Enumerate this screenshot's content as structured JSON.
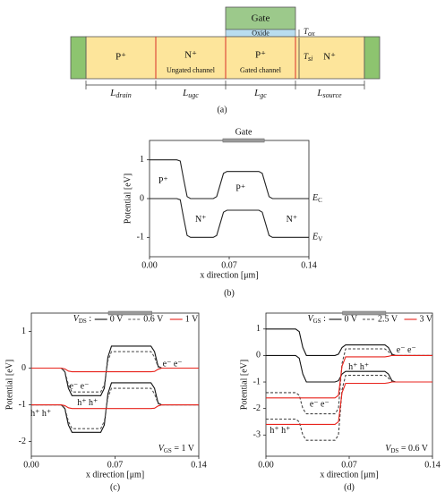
{
  "diagram": {
    "gate": "Gate",
    "oxide": "Oxide",
    "regions": [
      {
        "label": "P⁺"
      },
      {
        "label": "N⁺",
        "sublabel": "Ungated channel"
      },
      {
        "label": "P⁺",
        "sublabel": "Gated channel"
      },
      {
        "label": "N⁺"
      }
    ],
    "dimensions": [
      {
        "main": "L",
        "sub": "drain"
      },
      {
        "main": "L",
        "sub": "ugc"
      },
      {
        "main": "L",
        "sub": "gc"
      },
      {
        "main": "L",
        "sub": "source"
      }
    ],
    "thickness": [
      {
        "main": "T",
        "sub": "ox"
      },
      {
        "main": "T",
        "sub": "si"
      }
    ],
    "caption": "(a)"
  },
  "chart_data": [
    {
      "type": "line",
      "caption": "(b)",
      "gate_label": "Gate",
      "xlabel": "x direction [μm]",
      "ylabel": "Potential [eV]",
      "xlim": [
        0,
        0.14
      ],
      "xticks": [
        {
          "value": 0,
          "label": "0.00"
        },
        0.07,
        {
          "value": 0.14,
          "label": "0.14"
        }
      ],
      "ylim": [
        -1.5,
        1.5
      ],
      "yticks": [
        1,
        0,
        -1
      ],
      "x": [
        0,
        0.024,
        0.027,
        0.03,
        0.033,
        0.036,
        0.056,
        0.059,
        0.062,
        0.065,
        0.068,
        0.096,
        0.099,
        0.102,
        0.105,
        0.108,
        0.14
      ],
      "series": [
        {
          "label": {
            "main": "E",
            "sub": "C"
          },
          "color": "#222222",
          "dash": false,
          "lines": [
            {
              "values": [
                1,
                1,
                0.97,
                0.5,
                0.05,
                0,
                0,
                0.05,
                0.35,
                0.65,
                0.7,
                0.7,
                0.65,
                0.35,
                0.05,
                0,
                0
              ]
            }
          ]
        },
        {
          "label": {
            "main": "E",
            "sub": "V"
          },
          "color": "#222222",
          "dash": false,
          "lines": [
            {
              "values": [
                0,
                0,
                -0.03,
                -0.5,
                -0.95,
                -1,
                -1,
                -0.95,
                -0.65,
                -0.35,
                -0.3,
                -0.3,
                -0.35,
                -0.65,
                -0.95,
                -1,
                -1
              ]
            }
          ]
        }
      ],
      "annotations": [
        "P⁺",
        "P⁺",
        "N⁺",
        "N⁺"
      ]
    },
    {
      "type": "line",
      "caption": "(c)",
      "xlabel": "x direction [μm]",
      "ylabel": "Potential [eV]",
      "xlim": [
        0,
        0.14
      ],
      "xticks": [
        {
          "value": 0,
          "label": "0.00"
        },
        0.07,
        {
          "value": 0.14,
          "label": "0.14"
        }
      ],
      "ylim": [
        -2.4,
        1.5
      ],
      "yticks": [
        1,
        0,
        -1,
        -2
      ],
      "legend_title": {
        "main": "V",
        "sub": "DS",
        "tail": " :"
      },
      "condition": {
        "main": "V",
        "sub": "GS",
        "tail": " = 1 V"
      },
      "x": [
        0,
        0.025,
        0.028,
        0.031,
        0.034,
        0.058,
        0.061,
        0.064,
        0.067,
        0.1,
        0.103,
        0.106,
        0.109,
        0.14
      ],
      "series": [
        {
          "name": "0 V",
          "color": "#111111",
          "dash": false,
          "lines": [
            {
              "values": [
                0,
                0,
                -0.1,
                -0.55,
                -0.75,
                -0.75,
                -0.55,
                0.3,
                0.6,
                0.6,
                0.45,
                0.05,
                0,
                0
              ]
            },
            {
              "values": [
                -1,
                -1,
                -1.1,
                -1.55,
                -1.75,
                -1.75,
                -1.55,
                -0.7,
                -0.4,
                -0.4,
                -0.55,
                -0.95,
                -1,
                -1
              ]
            }
          ]
        },
        {
          "name": "0.6 V",
          "color": "#555555",
          "dash": true,
          "lines": [
            {
              "values": [
                0,
                0,
                -0.08,
                -0.45,
                -0.65,
                -0.65,
                -0.45,
                0.2,
                0.45,
                0.45,
                0.3,
                0.03,
                0,
                0
              ]
            },
            {
              "values": [
                -1,
                -1,
                -1.08,
                -1.45,
                -1.65,
                -1.65,
                -1.45,
                -0.8,
                -0.55,
                -0.55,
                -0.7,
                -0.97,
                -1,
                -1
              ]
            }
          ]
        },
        {
          "name": "1 V",
          "color": "#e8231c",
          "dash": false,
          "lines": [
            {
              "values": [
                0,
                0,
                -0.02,
                -0.08,
                -0.1,
                -0.1,
                -0.1,
                -0.1,
                -0.1,
                -0.1,
                -0.09,
                -0.03,
                0,
                0
              ]
            },
            {
              "values": [
                -1,
                -1,
                -1.02,
                -1.08,
                -1.1,
                -1.1,
                -1.1,
                -1.1,
                -1.1,
                -1.1,
                -1.09,
                -1.03,
                -1,
                -1
              ]
            }
          ]
        }
      ],
      "annotations": [
        "e⁻ e⁻",
        "e⁻ e⁻",
        "h⁺ h⁺",
        "h⁺ h⁺"
      ]
    },
    {
      "type": "line",
      "caption": "(d)",
      "xlabel": "x direction [μm]",
      "ylabel": "Potential [eV]",
      "xlim": [
        0,
        0.14
      ],
      "xticks": [
        {
          "value": 0,
          "label": "0.00"
        },
        0.07,
        {
          "value": 0.14,
          "label": "0.14"
        }
      ],
      "ylim": [
        -3.8,
        1.6
      ],
      "yticks": [
        1,
        0,
        -1,
        -2,
        -3
      ],
      "legend_title": {
        "main": "V",
        "sub": "GS",
        "tail": " :"
      },
      "condition": {
        "main": "V",
        "sub": "DS",
        "tail": " = 0.6 V"
      },
      "x": [
        0,
        0.025,
        0.028,
        0.031,
        0.034,
        0.058,
        0.061,
        0.064,
        0.067,
        0.1,
        0.103,
        0.106,
        0.109,
        0.14
      ],
      "series": [
        {
          "name": "0 V",
          "color": "#111111",
          "dash": false,
          "lines": [
            {
              "values": [
                1,
                1,
                0.9,
                0.3,
                0,
                0,
                0.05,
                0.3,
                0.4,
                0.4,
                0.3,
                0.05,
                0,
                0
              ]
            },
            {
              "values": [
                0,
                0,
                -0.1,
                -0.7,
                -1,
                -1,
                -0.95,
                -0.7,
                -0.6,
                -0.6,
                -0.7,
                -0.95,
                -1,
                -1
              ]
            }
          ]
        },
        {
          "name": "2.5 V",
          "color": "#444444",
          "dash": true,
          "lines": [
            {
              "values": [
                -1.4,
                -1.4,
                -1.5,
                -2,
                -2.2,
                -2.2,
                -2,
                -0.3,
                0.25,
                0.25,
                0.15,
                0.02,
                0,
                0
              ]
            },
            {
              "values": [
                -2.4,
                -2.4,
                -2.5,
                -3,
                -3.2,
                -3.2,
                -3,
                -1.3,
                -0.75,
                -0.75,
                -0.85,
                -0.98,
                -1,
                -1
              ]
            }
          ]
        },
        {
          "name": "3 V",
          "color": "#e8231c",
          "dash": false,
          "lines": [
            {
              "values": [
                -1.6,
                -1.6,
                -1.6,
                -1.6,
                -1.6,
                -1.6,
                -1.5,
                -0.4,
                -0.05,
                -0.05,
                -0.03,
                0,
                0,
                0
              ]
            },
            {
              "values": [
                -2.6,
                -2.6,
                -2.6,
                -2.6,
                -2.6,
                -2.6,
                -2.5,
                -1.4,
                -1.05,
                -1.05,
                -1.03,
                -1,
                -1,
                -1
              ]
            }
          ]
        }
      ],
      "annotations": [
        "e⁻ e⁻",
        "h⁺ h⁺",
        "e⁻ e⁻",
        "h⁺ h⁺"
      ]
    }
  ]
}
